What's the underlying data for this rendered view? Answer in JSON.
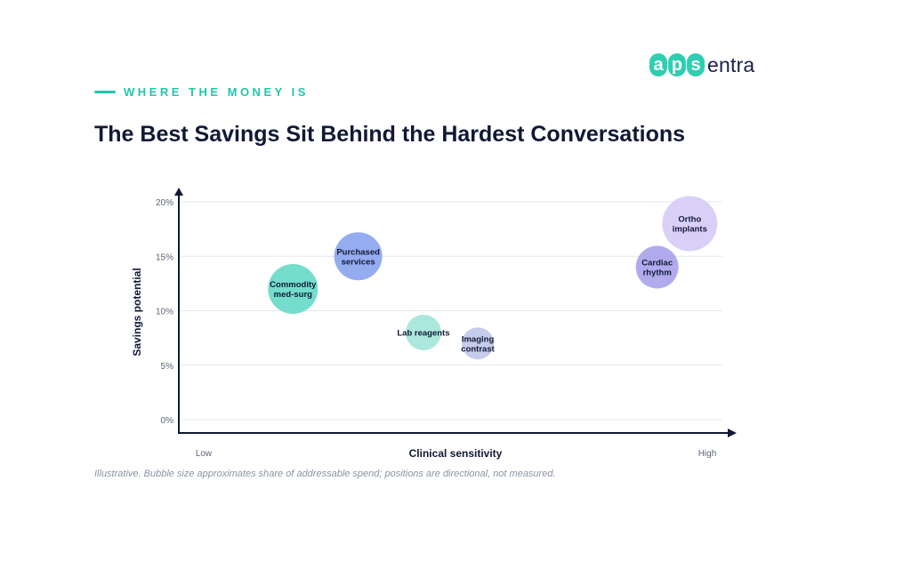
{
  "logo": {
    "part1": [
      "a",
      "p",
      "s"
    ],
    "part2": "entra",
    "accent": "#2ecfb0"
  },
  "eyebrow": "WHERE THE MONEY IS",
  "title": "The Best Savings Sit Behind the Hardest Conversations",
  "footnote": "Illustrative. Bubble size approximates share of addressable spend; positions are directional, not measured.",
  "chart_data": {
    "type": "scatter",
    "subtype": "bubble",
    "xlabel": "Clinical sensitivity",
    "ylabel": "Savings potential",
    "x_tick_labels": {
      "low": "Low",
      "high": "High"
    },
    "xlim": [
      0,
      100
    ],
    "ylim": [
      0,
      20
    ],
    "y_ticks": [
      0,
      5,
      10,
      15,
      20
    ],
    "y_tick_labels": [
      "0%",
      "5%",
      "10%",
      "15%",
      "20%"
    ],
    "grid": true,
    "points": [
      {
        "label": [
          "Commodity",
          "med-surg"
        ],
        "x": 21,
        "y": 12,
        "size": 28,
        "color": "#6ddbc8"
      },
      {
        "label": [
          "Purchased",
          "services"
        ],
        "x": 33,
        "y": 15,
        "size": 27,
        "color": "#90a8ef"
      },
      {
        "label": [
          "Lab reagents"
        ],
        "x": 45,
        "y": 8,
        "size": 20,
        "color": "#a8e6db"
      },
      {
        "label": [
          "Imaging",
          "contrast"
        ],
        "x": 55,
        "y": 7,
        "size": 18,
        "color": "#c3c9ea"
      },
      {
        "label": [
          "Cardiac",
          "rhythm"
        ],
        "x": 88,
        "y": 14,
        "size": 24,
        "color": "#ada6ec"
      },
      {
        "label": [
          "Ortho",
          "implants"
        ],
        "x": 94,
        "y": 18,
        "size": 31,
        "color": "#d8cdf7"
      }
    ]
  }
}
